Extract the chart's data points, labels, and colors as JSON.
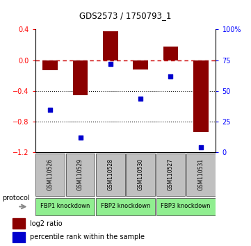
{
  "title": "GDS2573 / 1750793_1",
  "samples": [
    "GSM110526",
    "GSM110529",
    "GSM110528",
    "GSM110530",
    "GSM110527",
    "GSM110531"
  ],
  "log2_ratio": [
    -0.13,
    -0.45,
    0.38,
    -0.12,
    0.18,
    -0.93
  ],
  "percentile_rank": [
    35,
    12,
    72,
    44,
    62,
    4
  ],
  "ylim_left": [
    -1.2,
    0.4
  ],
  "ylim_right": [
    0,
    100
  ],
  "yticks_left": [
    0.4,
    0,
    -0.4,
    -0.8,
    -1.2
  ],
  "yticks_right": [
    100,
    75,
    50,
    25,
    0
  ],
  "protocols": [
    {
      "label": "FBP1 knockdown",
      "samples": [
        0,
        1
      ],
      "color": "#90ee90"
    },
    {
      "label": "FBP2 knockdown",
      "samples": [
        2,
        3
      ],
      "color": "#90ee90"
    },
    {
      "label": "FBP3 knockdown",
      "samples": [
        4,
        5
      ],
      "color": "#90ee90"
    }
  ],
  "bar_color": "#8B0000",
  "dot_color": "#0000CD",
  "bar_width": 0.5,
  "hline_color": "#CC0000",
  "dotted_line_color": "#000000",
  "sample_box_color": "#C0C0C0",
  "legend_bar_label": "log2 ratio",
  "legend_dot_label": "percentile rank within the sample"
}
